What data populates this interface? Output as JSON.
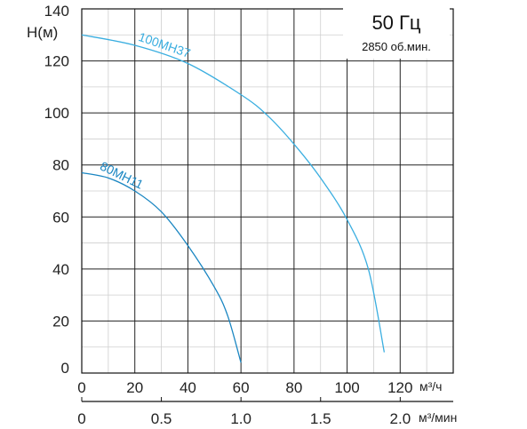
{
  "chart_data": {
    "type": "line",
    "title": "50 Гц",
    "subtitle": "2850 об.мин.",
    "ylabel": "H(м)",
    "xlabel": "м³/ч",
    "x2label": "м³/мин",
    "xlim": [
      0,
      140
    ],
    "ylim": [
      0,
      140
    ],
    "x2lim": [
      0,
      2.333
    ],
    "x_ticks": [
      "0",
      "20",
      "40",
      "60",
      "80",
      "100",
      "120"
    ],
    "x_tick_values": [
      0,
      20,
      40,
      60,
      80,
      100,
      120
    ],
    "x2_ticks": [
      "0",
      "0.5",
      "1.0",
      "1.5",
      "2.0"
    ],
    "x2_tick_values": [
      0,
      0.5,
      1.0,
      1.5,
      2.0
    ],
    "y_ticks": [
      "0",
      "20",
      "40",
      "60",
      "80",
      "100",
      "120",
      "140"
    ],
    "y_tick_values": [
      0,
      20,
      40,
      60,
      80,
      100,
      120,
      140
    ],
    "grid": true,
    "series": [
      {
        "name": "80МН11",
        "color": "#1a86c2",
        "x": [
          0,
          10,
          20,
          30,
          40,
          50,
          55,
          60
        ],
        "y": [
          77,
          75,
          70,
          62,
          49,
          33,
          22,
          4
        ]
      },
      {
        "name": "100МН37",
        "color": "#3aaee0",
        "x": [
          0,
          20,
          40,
          60,
          70,
          80,
          90,
          100,
          108,
          114
        ],
        "y": [
          130,
          126,
          119,
          107,
          99,
          88,
          75,
          59,
          40,
          8
        ]
      }
    ]
  }
}
